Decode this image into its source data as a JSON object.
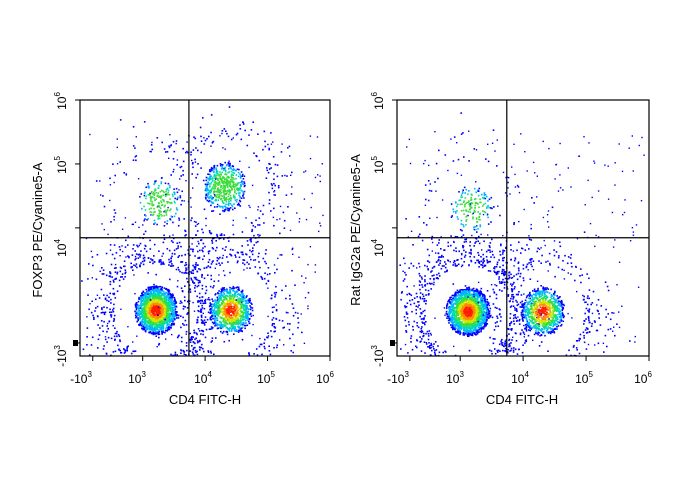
{
  "chart_data": [
    {
      "type": "scatter",
      "subtype": "flow-cytometry-density-dot-plot",
      "xlabel": "CD4 FITC-H",
      "ylabel": "FOXP3 PE/Cyanine5-A",
      "x_scale": "biexponential",
      "y_scale": "biexponential",
      "x_ticks": [
        {
          "base": "-10",
          "exp": "3",
          "value": -1000
        },
        {
          "base": "10",
          "exp": "3",
          "value": 1000
        },
        {
          "base": "10",
          "exp": "4",
          "value": 10000
        },
        {
          "base": "10",
          "exp": "5",
          "value": 100000
        },
        {
          "base": "10",
          "exp": "6",
          "value": 1000000
        }
      ],
      "y_ticks": [
        {
          "base": "-10",
          "exp": "3",
          "value": -1000
        },
        {
          "base": "10",
          "exp": "4",
          "value": 10000
        },
        {
          "base": "10",
          "exp": "5",
          "value": 100000
        },
        {
          "base": "10",
          "exp": "6",
          "value": 1000000
        }
      ],
      "xlim": [
        -1600,
        1000000
      ],
      "ylim": [
        -1600,
        1000000
      ],
      "gate_x": 5500,
      "gate_y": 7000,
      "populations": [
        {
          "x": 1600,
          "y": 300,
          "count": 2200
        },
        {
          "x": 25000,
          "y": 300,
          "count": 1200
        },
        {
          "x": 20000,
          "y": 45000,
          "count": 700
        },
        {
          "x": 1800,
          "y": 25000,
          "count": 250
        }
      ]
    },
    {
      "type": "scatter",
      "subtype": "flow-cytometry-density-dot-plot",
      "xlabel": "CD4 FITC-H",
      "ylabel": "Rat IgG2a PE/Cyanine5-A",
      "x_scale": "biexponential",
      "y_scale": "biexponential",
      "x_ticks": [
        {
          "base": "-10",
          "exp": "3",
          "value": -1000
        },
        {
          "base": "10",
          "exp": "3",
          "value": 1000
        },
        {
          "base": "10",
          "exp": "4",
          "value": 10000
        },
        {
          "base": "10",
          "exp": "5",
          "value": 100000
        },
        {
          "base": "10",
          "exp": "6",
          "value": 1000000
        }
      ],
      "y_ticks": [
        {
          "base": "-10",
          "exp": "3",
          "value": -1000
        },
        {
          "base": "10",
          "exp": "4",
          "value": 10000
        },
        {
          "base": "10",
          "exp": "5",
          "value": 100000
        },
        {
          "base": "10",
          "exp": "6",
          "value": 1000000
        }
      ],
      "xlim": [
        -1600,
        1000000
      ],
      "ylim": [
        -1600,
        1000000
      ],
      "gate_x": 5500,
      "gate_y": 7000,
      "populations": [
        {
          "x": 1300,
          "y": 250,
          "count": 2400
        },
        {
          "x": 20000,
          "y": 250,
          "count": 1100
        },
        {
          "x": 1500,
          "y": 20000,
          "count": 200
        }
      ]
    }
  ],
  "colors": {
    "density": [
      "#0000ff",
      "#00b4ff",
      "#00dcaa",
      "#3cdc3c",
      "#d2e600",
      "#ff8c00",
      "#ff1e00"
    ],
    "axis": "#000000",
    "gate": "#000000"
  }
}
